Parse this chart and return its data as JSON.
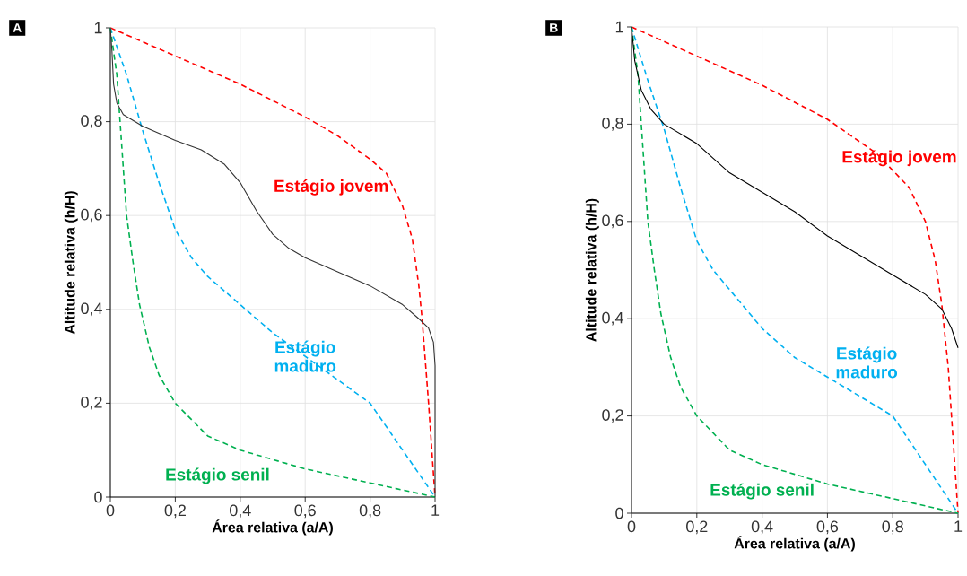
{
  "chart_data": [
    {
      "type": "line",
      "title": "A",
      "xlabel": "Área relativa (a/A)",
      "ylabel": "Altitude relativa (h/H)",
      "xlim": [
        0,
        1
      ],
      "ylim": [
        0,
        1
      ],
      "grid": true,
      "xticks": [
        0,
        {
          "value": 0.2,
          "label": "0,2"
        },
        {
          "value": 0.4,
          "label": "0,4"
        },
        {
          "value": 0.6,
          "label": "0,6"
        },
        {
          "value": 0.8,
          "label": "0,8"
        },
        1
      ],
      "yticks": [
        0,
        {
          "value": 0.2,
          "label": "0,2"
        },
        {
          "value": 0.4,
          "label": "0,4"
        },
        {
          "value": 0.6,
          "label": "0,6"
        },
        {
          "value": 0.8,
          "label": "0,8"
        },
        1
      ],
      "series": [
        {
          "name": "Estágio jovem",
          "color": "#ff0000",
          "line_style": "dashed",
          "x": [
            0,
            0.2,
            0.4,
            0.6,
            0.7,
            0.8,
            0.85,
            0.9,
            0.93,
            0.95,
            0.96,
            0.98,
            1
          ],
          "values": [
            1,
            0.94,
            0.88,
            0.81,
            0.77,
            0.72,
            0.69,
            0.62,
            0.55,
            0.45,
            0.38,
            0.2,
            0
          ]
        },
        {
          "name": "Estágio maduro",
          "color": "#00b0f0",
          "line_style": "dashed",
          "x": [
            0,
            0.05,
            0.1,
            0.15,
            0.2,
            0.25,
            0.3,
            0.4,
            0.5,
            0.6,
            0.7,
            0.8,
            0.85,
            0.9,
            0.95,
            1
          ],
          "values": [
            1,
            0.9,
            0.78,
            0.67,
            0.57,
            0.51,
            0.47,
            0.41,
            0.35,
            0.3,
            0.25,
            0.2,
            0.15,
            0.1,
            0.05,
            0
          ]
        },
        {
          "name": "Estágio senil",
          "color": "#00b050",
          "line_style": "dashed",
          "x": [
            0,
            0.02,
            0.03,
            0.04,
            0.05,
            0.07,
            0.09,
            0.12,
            0.15,
            0.2,
            0.3,
            0.4,
            0.5,
            0.6,
            0.8,
            1
          ],
          "values": [
            1,
            0.9,
            0.8,
            0.7,
            0.6,
            0.5,
            0.41,
            0.32,
            0.26,
            0.2,
            0.13,
            0.1,
            0.08,
            0.06,
            0.03,
            0
          ]
        },
        {
          "color": "#333333",
          "line_style": "solid",
          "x": [
            0,
            0.005,
            0.01,
            0.02,
            0.04,
            0.1,
            0.2,
            0.28,
            0.35,
            0.4,
            0.45,
            0.5,
            0.55,
            0.6,
            0.7,
            0.8,
            0.9,
            0.95,
            0.98,
            0.995,
            1,
            1
          ],
          "values": [
            1,
            0.95,
            0.88,
            0.84,
            0.815,
            0.79,
            0.76,
            0.74,
            0.71,
            0.67,
            0.61,
            0.56,
            0.53,
            0.51,
            0.48,
            0.45,
            0.41,
            0.38,
            0.36,
            0.33,
            0.28,
            0
          ]
        }
      ]
    },
    {
      "type": "line",
      "title": "B",
      "xlabel": "Área relativa (a/A)",
      "ylabel": "Altitude relativa (h/H)",
      "xlim": [
        0,
        1
      ],
      "ylim": [
        0,
        1
      ],
      "grid": true,
      "xticks": [
        0,
        {
          "value": 0.2,
          "label": "0,2"
        },
        {
          "value": 0.4,
          "label": "0,4"
        },
        {
          "value": 0.6,
          "label": "0,6"
        },
        {
          "value": 0.8,
          "label": "0,8"
        },
        1
      ],
      "yticks": [
        0,
        {
          "value": 0.2,
          "label": "0,2"
        },
        {
          "value": 0.4,
          "label": "0,4"
        },
        {
          "value": 0.6,
          "label": "0,6"
        },
        {
          "value": 0.8,
          "label": "0,8"
        },
        1
      ],
      "series": [
        {
          "name": "Estágio jovem",
          "color": "#ff0000",
          "line_style": "dashed",
          "x": [
            0,
            0.2,
            0.4,
            0.6,
            0.75,
            0.85,
            0.9,
            0.93,
            0.95,
            0.97,
            1
          ],
          "values": [
            1,
            0.94,
            0.88,
            0.81,
            0.74,
            0.67,
            0.6,
            0.52,
            0.43,
            0.3,
            0
          ]
        },
        {
          "name": "Estágio maduro",
          "color": "#00b0f0",
          "line_style": "dashed",
          "x": [
            0,
            0.05,
            0.1,
            0.15,
            0.2,
            0.25,
            0.3,
            0.4,
            0.5,
            0.6,
            0.7,
            0.8,
            0.9,
            1
          ],
          "values": [
            1,
            0.89,
            0.79,
            0.67,
            0.56,
            0.5,
            0.46,
            0.38,
            0.32,
            0.28,
            0.24,
            0.2,
            0.1,
            0
          ]
        },
        {
          "name": "Estágio senil",
          "color": "#00b050",
          "line_style": "dashed",
          "x": [
            0,
            0.02,
            0.03,
            0.04,
            0.05,
            0.07,
            0.09,
            0.12,
            0.15,
            0.2,
            0.3,
            0.4,
            0.5,
            0.6,
            0.8,
            1
          ],
          "values": [
            1,
            0.9,
            0.8,
            0.7,
            0.6,
            0.5,
            0.41,
            0.32,
            0.26,
            0.2,
            0.13,
            0.1,
            0.08,
            0.06,
            0.03,
            0
          ]
        },
        {
          "color": "#000000",
          "line_style": "solid",
          "x": [
            0,
            0.01,
            0.03,
            0.06,
            0.1,
            0.15,
            0.2,
            0.3,
            0.4,
            0.5,
            0.6,
            0.7,
            0.8,
            0.9,
            0.95,
            0.98,
            1
          ],
          "values": [
            1,
            0.93,
            0.87,
            0.83,
            0.8,
            0.78,
            0.76,
            0.7,
            0.66,
            0.62,
            0.57,
            0.53,
            0.49,
            0.45,
            0.42,
            0.38,
            0.34
          ]
        }
      ]
    }
  ]
}
